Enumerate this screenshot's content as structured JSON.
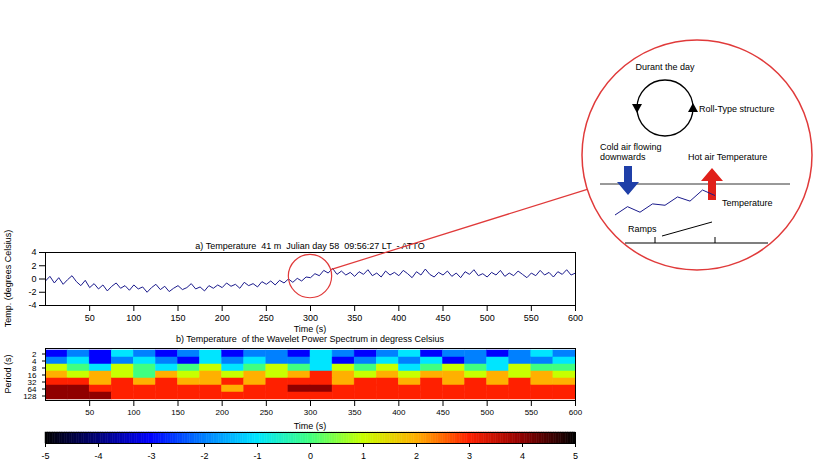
{
  "chart_data": [
    {
      "type": "line",
      "title": "a) Temperature  41 m  Julian day 58  09:56:27 LT  - ATTO",
      "x_label": "Time (s)",
      "y_label": "Temp. (degrees Celsius)",
      "color": "#1a1a8c",
      "xlim": [
        0,
        600
      ],
      "xticks": [
        50,
        100,
        150,
        200,
        250,
        300,
        350,
        400,
        450,
        500,
        550,
        600
      ],
      "ylim": [
        -4,
        4
      ],
      "yticks": [
        -4,
        -2,
        0,
        2,
        4
      ],
      "x": [
        0,
        5,
        10,
        15,
        20,
        25,
        30,
        35,
        40,
        45,
        50,
        55,
        60,
        65,
        70,
        75,
        80,
        85,
        90,
        95,
        100,
        105,
        110,
        115,
        120,
        125,
        130,
        135,
        140,
        145,
        150,
        155,
        160,
        165,
        170,
        175,
        180,
        185,
        190,
        195,
        200,
        205,
        210,
        215,
        220,
        225,
        230,
        235,
        240,
        245,
        250,
        255,
        260,
        265,
        270,
        275,
        280,
        285,
        290,
        295,
        300,
        305,
        310,
        315,
        320,
        325,
        330,
        335,
        340,
        345,
        350,
        355,
        360,
        365,
        370,
        375,
        380,
        385,
        390,
        395,
        400,
        405,
        410,
        415,
        420,
        425,
        430,
        435,
        440,
        445,
        450,
        455,
        460,
        465,
        470,
        475,
        480,
        485,
        490,
        495,
        500,
        505,
        510,
        515,
        520,
        525,
        530,
        535,
        540,
        545,
        550,
        555,
        560,
        565,
        570,
        575,
        580,
        585,
        590,
        595,
        600
      ],
      "values": [
        -0.3,
        0.4,
        -0.6,
        0.2,
        -0.8,
        -0.1,
        0.5,
        -0.4,
        -1.0,
        -0.2,
        -1.3,
        -0.7,
        -1.5,
        -0.9,
        -1.8,
        -1.1,
        -0.6,
        -1.4,
        -1.0,
        -1.7,
        -0.9,
        -1.5,
        -1.2,
        -2.0,
        -1.3,
        -0.8,
        -1.6,
        -1.1,
        -1.9,
        -1.4,
        -1.0,
        -1.6,
        -1.3,
        -0.7,
        -1.5,
        -1.2,
        -1.8,
        -1.0,
        -1.4,
        -0.9,
        -1.3,
        -0.6,
        -1.1,
        -0.8,
        -1.4,
        -0.5,
        -1.0,
        -0.7,
        -1.2,
        -0.4,
        -0.8,
        -0.3,
        -0.9,
        -0.2,
        -0.6,
        0.0,
        -0.5,
        0.1,
        -0.3,
        0.3,
        0.2,
        0.8,
        0.5,
        1.3,
        0.9,
        1.6,
        0.7,
        1.2,
        0.6,
        1.0,
        0.4,
        1.1,
        0.7,
        1.4,
        0.5,
        0.9,
        0.3,
        1.2,
        0.6,
        1.0,
        0.5,
        1.3,
        0.8,
        0.2,
        1.1,
        0.6,
        1.5,
        0.7,
        0.3,
        1.0,
        0.6,
        1.2,
        0.4,
        0.9,
        0.2,
        1.1,
        0.7,
        1.4,
        0.5,
        0.8,
        0.3,
        1.0,
        0.6,
        1.3,
        0.4,
        0.9,
        0.5,
        1.2,
        0.7,
        0.2,
        0.9,
        0.5,
        1.3,
        0.6,
        1.0,
        0.3,
        1.1,
        0.7,
        1.4,
        0.6,
        0.9
      ]
    },
    {
      "type": "heatmap",
      "title": "b) Temperature  of the Wavelet Power Spectrum in degress Celsius",
      "x_label": "Time (s)",
      "y_label": "Period (s)",
      "xlim": [
        0,
        600
      ],
      "xticks": [
        50,
        100,
        150,
        200,
        250,
        300,
        350,
        400,
        450,
        500,
        550,
        600
      ],
      "x_bins": [
        0,
        25,
        50,
        75,
        100,
        125,
        150,
        175,
        200,
        225,
        250,
        275,
        300,
        325,
        350,
        375,
        400,
        425,
        450,
        475,
        500,
        525,
        550,
        575,
        600
      ],
      "categories": [
        2,
        4,
        8,
        16,
        32,
        64,
        128
      ],
      "cells": [
        [
          -3,
          -2,
          -3,
          -1,
          -2,
          -3,
          -2,
          -1,
          -3,
          -2,
          -2,
          -3,
          -1,
          -2,
          -3,
          -2,
          -1,
          -3,
          -2,
          -2,
          -3,
          -2,
          -1,
          -2
        ],
        [
          -2,
          -1,
          -3,
          -2,
          -1,
          -2,
          -3,
          -1,
          -2,
          -1,
          -2,
          -2,
          -1,
          -3,
          -2,
          -1,
          -2,
          -1,
          -3,
          -2,
          -1,
          -2,
          -2,
          -1
        ],
        [
          1,
          0,
          -1,
          1,
          0,
          -1,
          0,
          1,
          -1,
          0,
          1,
          0,
          -1,
          1,
          0,
          1,
          -1,
          0,
          1,
          0,
          -1,
          1,
          0,
          0
        ],
        [
          2,
          1,
          2,
          1,
          0,
          2,
          1,
          2,
          1,
          2,
          1,
          2,
          3,
          2,
          1,
          2,
          1,
          2,
          2,
          1,
          2,
          1,
          2,
          1
        ],
        [
          3,
          3,
          2,
          3,
          2,
          3,
          2,
          2,
          3,
          2,
          3,
          3,
          3,
          2,
          3,
          3,
          2,
          3,
          2,
          3,
          2,
          3,
          2,
          2
        ],
        [
          4,
          4,
          3,
          3,
          3,
          3,
          3,
          3,
          2,
          3,
          3,
          4,
          4,
          3,
          3,
          3,
          3,
          3,
          3,
          3,
          3,
          3,
          3,
          3
        ],
        [
          4,
          4,
          4,
          3,
          3,
          3,
          3,
          3,
          3,
          3,
          3,
          3,
          3,
          3,
          3,
          3,
          3,
          3,
          3,
          3,
          3,
          3,
          3,
          3
        ]
      ],
      "colorbar": {
        "range": [
          -5,
          5
        ],
        "ticks": [
          -5,
          -4,
          -3,
          -2,
          -1,
          0,
          1,
          2,
          3,
          4,
          5
        ]
      }
    }
  ],
  "diagram": {
    "zoom_window": [
      280,
      320
    ],
    "cycle_label": "Durant the day",
    "roll_label": "Roll-Type structure",
    "cold_label": "Cold air flowing downwards",
    "hot_label": "Hot air Temperature",
    "trace_label": "Temperature",
    "ramps_label": "Ramps"
  }
}
